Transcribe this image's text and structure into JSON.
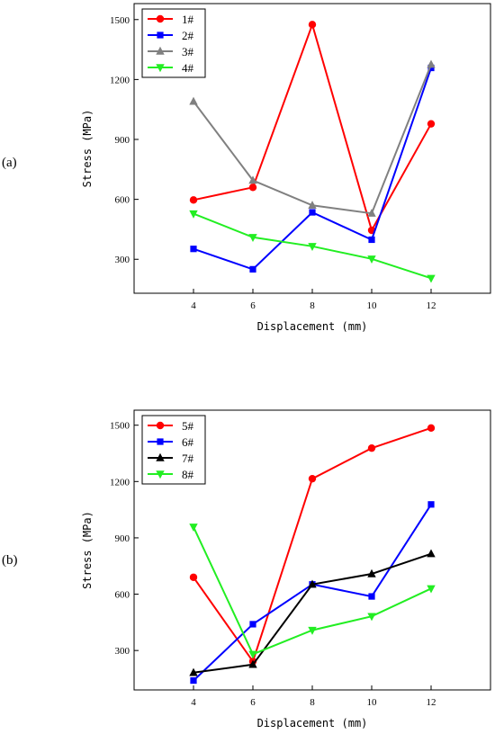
{
  "chart_data": [
    {
      "type": "line",
      "panel_label": "(a)",
      "xlabel": "Displacement (mm)",
      "ylabel": "Stress (MPa)",
      "x": [
        4,
        6,
        8,
        10,
        12
      ],
      "x_ticks": [
        4,
        6,
        8,
        10,
        12
      ],
      "y_ticks": [
        300,
        600,
        900,
        1200,
        1500
      ],
      "xlim": [
        2,
        14
      ],
      "ylim": [
        130,
        1580
      ],
      "grid": false,
      "legend_position": "top-left",
      "series": [
        {
          "name": "1#",
          "values": [
            597,
            660,
            1475,
            445,
            978
          ],
          "color": "#ff0000",
          "marker": "circle"
        },
        {
          "name": "2#",
          "values": [
            352,
            250,
            535,
            398,
            1258
          ],
          "color": "#0000ff",
          "marker": "square"
        },
        {
          "name": "3#",
          "values": [
            1090,
            695,
            570,
            530,
            1275
          ],
          "color": "#808080",
          "marker": "triangle-up"
        },
        {
          "name": "4#",
          "values": [
            528,
            410,
            365,
            302,
            205
          ],
          "color": "#22ee22",
          "marker": "triangle-down"
        }
      ]
    },
    {
      "type": "line",
      "panel_label": "(b)",
      "xlabel": "Displacement (mm)",
      "ylabel": "Stress (MPa)",
      "x": [
        4,
        6,
        8,
        10,
        12
      ],
      "x_ticks": [
        4,
        6,
        8,
        10,
        12
      ],
      "y_ticks": [
        300,
        600,
        900,
        1200,
        1500
      ],
      "xlim": [
        2,
        14
      ],
      "ylim": [
        90,
        1580
      ],
      "grid": false,
      "legend_position": "top-left",
      "series": [
        {
          "name": "5#",
          "values": [
            690,
            242,
            1215,
            1378,
            1485
          ],
          "color": "#ff0000",
          "marker": "circle"
        },
        {
          "name": "6#",
          "values": [
            140,
            440,
            652,
            588,
            1078
          ],
          "color": "#0000ff",
          "marker": "square"
        },
        {
          "name": "7#",
          "values": [
            182,
            225,
            652,
            708,
            815
          ],
          "color": "#000000",
          "marker": "triangle-up"
        },
        {
          "name": "8#",
          "values": [
            958,
            280,
            408,
            482,
            630
          ],
          "color": "#22ee22",
          "marker": "triangle-down"
        }
      ]
    }
  ]
}
